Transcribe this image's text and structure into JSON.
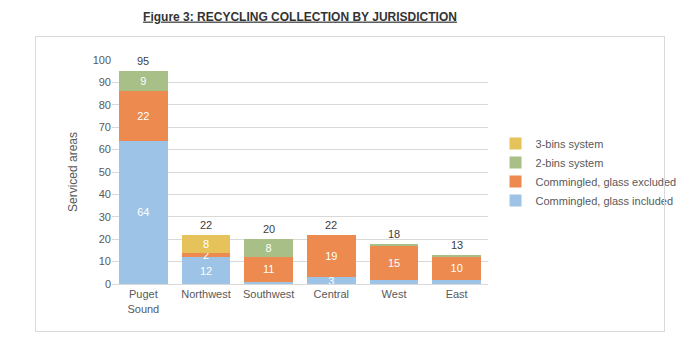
{
  "chart_data": {
    "type": "bar",
    "title": "Figure 3: RECYCLING COLLECTION BY JURISDICTION",
    "y_label": "Serviced areas",
    "categories": [
      "Puget Sound",
      "Northwest",
      "Southwest",
      "Central",
      "West",
      "East"
    ],
    "stacked": true,
    "data_labels": true,
    "series": [
      {
        "name": "Commingled, glass included",
        "color": "#9dc3e6",
        "values": [
          64,
          12,
          1,
          3,
          2,
          2
        ],
        "value_labels": [
          "64",
          "12",
          null,
          "3",
          null,
          null
        ]
      },
      {
        "name": "Commingled, glass excluded",
        "color": "#ec8a50",
        "values": [
          22,
          2,
          11,
          19,
          15,
          10
        ],
        "value_labels": [
          "22",
          "2",
          "11",
          "19",
          "15",
          "10"
        ]
      },
      {
        "name": "2-bins system",
        "color": "#a8bf88",
        "values": [
          9,
          0,
          8,
          0,
          1,
          1
        ],
        "value_labels": [
          "9",
          null,
          "8",
          null,
          null,
          null
        ]
      },
      {
        "name": "3-bins system",
        "color": "#e6c35a",
        "values": [
          0,
          8,
          0,
          0,
          0,
          0
        ],
        "value_labels": [
          null,
          "8",
          null,
          null,
          null,
          null
        ]
      }
    ],
    "totals": [
      95,
      22,
      20,
      22,
      18,
      13
    ],
    "ylim": [
      0,
      100
    ],
    "yticks": [
      0,
      10,
      20,
      30,
      40,
      50,
      60,
      70,
      80,
      90,
      100
    ],
    "grid": true,
    "legend": "right"
  }
}
